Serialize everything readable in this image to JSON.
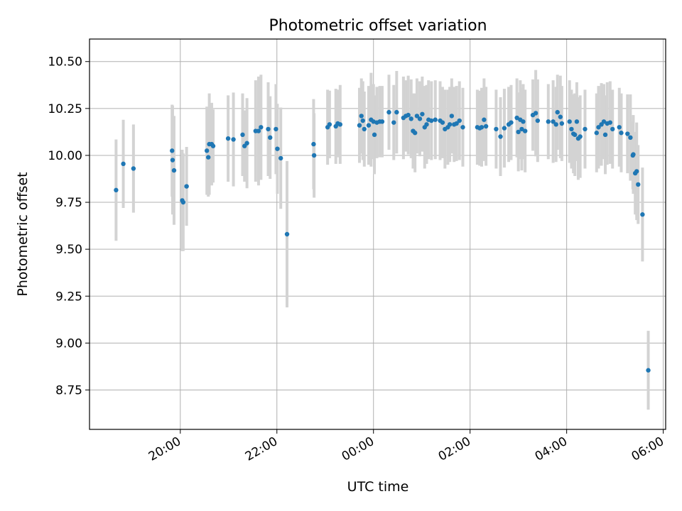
{
  "chart_data": {
    "type": "scatter",
    "title": "Photometric offset variation",
    "xlabel": "UTC time",
    "ylabel": "Photometric offset",
    "x_unit": "hours since 00:00 UTC (negative = previous evening)",
    "xlim": [
      -5.88,
      6.05
    ],
    "ylim": [
      8.54,
      10.62
    ],
    "x_ticks": [
      {
        "value": -4,
        "label": "20:00"
      },
      {
        "value": -2,
        "label": "22:00"
      },
      {
        "value": 0,
        "label": "00:00"
      },
      {
        "value": 2,
        "label": "02:00"
      },
      {
        "value": 4,
        "label": "04:00"
      },
      {
        "value": 6,
        "label": "06:00"
      }
    ],
    "y_ticks": [
      {
        "value": 8.75,
        "label": "8.75"
      },
      {
        "value": 9.0,
        "label": "9.00"
      },
      {
        "value": 9.25,
        "label": "9.25"
      },
      {
        "value": 9.5,
        "label": "9.50"
      },
      {
        "value": 9.75,
        "label": "9.75"
      },
      {
        "value": 10.0,
        "label": "10.00"
      },
      {
        "value": 10.25,
        "label": "10.25"
      },
      {
        "value": 10.5,
        "label": "10.50"
      }
    ],
    "grid": true,
    "marker_color": "#1f77b4",
    "errorbar_color": "#d3d3d3",
    "series": [
      {
        "name": "offset",
        "points": [
          [
            -5.33,
            9.815,
            0.27
          ],
          [
            -5.18,
            9.955,
            0.235
          ],
          [
            -4.97,
            9.93,
            0.235
          ],
          [
            -4.17,
            10.025,
            0.245
          ],
          [
            -4.16,
            9.975,
            0.29
          ],
          [
            -4.13,
            9.92,
            0.29
          ],
          [
            -3.96,
            9.76,
            0.27
          ],
          [
            -3.94,
            9.75,
            0.26
          ],
          [
            -3.87,
            9.835,
            0.21
          ],
          [
            -3.45,
            10.025,
            0.235
          ],
          [
            -3.42,
            9.99,
            0.21
          ],
          [
            -3.4,
            10.06,
            0.27
          ],
          [
            -3.35,
            10.06,
            0.22
          ],
          [
            -3.32,
            10.05,
            0.195
          ],
          [
            -3.01,
            10.09,
            0.23
          ],
          [
            -2.9,
            10.085,
            0.25
          ],
          [
            -2.71,
            10.11,
            0.22
          ],
          [
            -2.67,
            10.05,
            0.19
          ],
          [
            -2.62,
            10.065,
            0.24
          ],
          [
            -2.44,
            10.13,
            0.27
          ],
          [
            -2.38,
            10.13,
            0.29
          ],
          [
            -2.33,
            10.15,
            0.28
          ],
          [
            -2.18,
            10.14,
            0.25
          ],
          [
            -2.14,
            10.095,
            0.22
          ],
          [
            -2.02,
            10.14,
            0.24
          ],
          [
            -1.99,
            10.035,
            0.24
          ],
          [
            -1.92,
            9.985,
            0.27
          ],
          [
            -1.79,
            9.58,
            0.39
          ],
          [
            -1.24,
            10.06,
            0.24
          ],
          [
            -1.23,
            10.0,
            0.225
          ],
          [
            -0.95,
            10.15,
            0.2
          ],
          [
            -0.91,
            10.165,
            0.18
          ],
          [
            -0.78,
            10.155,
            0.2
          ],
          [
            -0.74,
            10.17,
            0.18
          ],
          [
            -0.69,
            10.165,
            0.21
          ],
          [
            -0.29,
            10.16,
            0.2
          ],
          [
            -0.25,
            10.21,
            0.2
          ],
          [
            -0.22,
            10.185,
            0.21
          ],
          [
            -0.19,
            10.14,
            0.2
          ],
          [
            -0.1,
            10.16,
            0.21
          ],
          [
            -0.05,
            10.19,
            0.25
          ],
          [
            0.02,
            10.11,
            0.21
          ],
          [
            0.0,
            10.18,
            0.2
          ],
          [
            0.07,
            10.175,
            0.19
          ],
          [
            0.13,
            10.18,
            0.19
          ],
          [
            0.18,
            10.18,
            0.19
          ],
          [
            0.32,
            10.23,
            0.2
          ],
          [
            0.42,
            10.175,
            0.2
          ],
          [
            0.48,
            10.23,
            0.22
          ],
          [
            0.62,
            10.2,
            0.22
          ],
          [
            0.67,
            10.21,
            0.19
          ],
          [
            0.72,
            10.215,
            0.21
          ],
          [
            0.78,
            10.195,
            0.21
          ],
          [
            0.82,
            10.13,
            0.2
          ],
          [
            0.86,
            10.12,
            0.21
          ],
          [
            0.9,
            10.21,
            0.2
          ],
          [
            0.96,
            10.195,
            0.2
          ],
          [
            1.01,
            10.22,
            0.2
          ],
          [
            1.06,
            10.15,
            0.22
          ],
          [
            1.1,
            10.165,
            0.21
          ],
          [
            1.14,
            10.19,
            0.21
          ],
          [
            1.2,
            10.185,
            0.21
          ],
          [
            1.28,
            10.19,
            0.21
          ],
          [
            1.38,
            10.185,
            0.21
          ],
          [
            1.43,
            10.175,
            0.19
          ],
          [
            1.48,
            10.14,
            0.21
          ],
          [
            1.54,
            10.15,
            0.2
          ],
          [
            1.58,
            10.165,
            0.2
          ],
          [
            1.62,
            10.21,
            0.2
          ],
          [
            1.67,
            10.165,
            0.2
          ],
          [
            1.72,
            10.17,
            0.2
          ],
          [
            1.78,
            10.185,
            0.21
          ],
          [
            1.85,
            10.15,
            0.21
          ],
          [
            2.15,
            10.15,
            0.2
          ],
          [
            2.2,
            10.145,
            0.2
          ],
          [
            2.24,
            10.15,
            0.21
          ],
          [
            2.29,
            10.19,
            0.22
          ],
          [
            2.33,
            10.155,
            0.21
          ],
          [
            2.54,
            10.14,
            0.21
          ],
          [
            2.63,
            10.1,
            0.21
          ],
          [
            2.71,
            10.145,
            0.21
          ],
          [
            2.8,
            10.165,
            0.2
          ],
          [
            2.85,
            10.175,
            0.2
          ],
          [
            2.97,
            10.2,
            0.21
          ],
          [
            3.0,
            10.125,
            0.21
          ],
          [
            3.04,
            10.19,
            0.21
          ],
          [
            3.07,
            10.14,
            0.22
          ],
          [
            3.1,
            10.18,
            0.2
          ],
          [
            3.14,
            10.13,
            0.22
          ],
          [
            3.3,
            10.215,
            0.19
          ],
          [
            3.36,
            10.225,
            0.23
          ],
          [
            3.4,
            10.185,
            0.22
          ],
          [
            3.62,
            10.18,
            0.2
          ],
          [
            3.72,
            10.18,
            0.22
          ],
          [
            3.78,
            10.165,
            0.2
          ],
          [
            3.81,
            10.23,
            0.2
          ],
          [
            3.87,
            10.205,
            0.22
          ],
          [
            3.9,
            10.17,
            0.2
          ],
          [
            4.06,
            10.18,
            0.22
          ],
          [
            4.1,
            10.14,
            0.21
          ],
          [
            4.14,
            10.115,
            0.21
          ],
          [
            4.17,
            10.11,
            0.22
          ],
          [
            4.21,
            10.18,
            0.21
          ],
          [
            4.24,
            10.09,
            0.22
          ],
          [
            4.28,
            10.1,
            0.22
          ],
          [
            4.38,
            10.14,
            0.21
          ],
          [
            4.62,
            10.12,
            0.21
          ],
          [
            4.66,
            10.15,
            0.22
          ],
          [
            4.72,
            10.165,
            0.22
          ],
          [
            4.77,
            10.18,
            0.2
          ],
          [
            4.8,
            10.11,
            0.21
          ],
          [
            4.84,
            10.17,
            0.22
          ],
          [
            4.9,
            10.175,
            0.22
          ],
          [
            4.95,
            10.14,
            0.21
          ],
          [
            5.09,
            10.15,
            0.21
          ],
          [
            5.13,
            10.12,
            0.21
          ],
          [
            5.26,
            10.115,
            0.21
          ],
          [
            5.32,
            10.095,
            0.23
          ],
          [
            5.37,
            10.0,
            0.18
          ],
          [
            5.38,
            10.005,
            0.21
          ],
          [
            5.42,
            9.905,
            0.22
          ],
          [
            5.45,
            9.915,
            0.26
          ],
          [
            5.48,
            9.845,
            0.21
          ],
          [
            5.57,
            9.685,
            0.25
          ],
          [
            5.69,
            8.855,
            0.21
          ]
        ]
      }
    ]
  }
}
